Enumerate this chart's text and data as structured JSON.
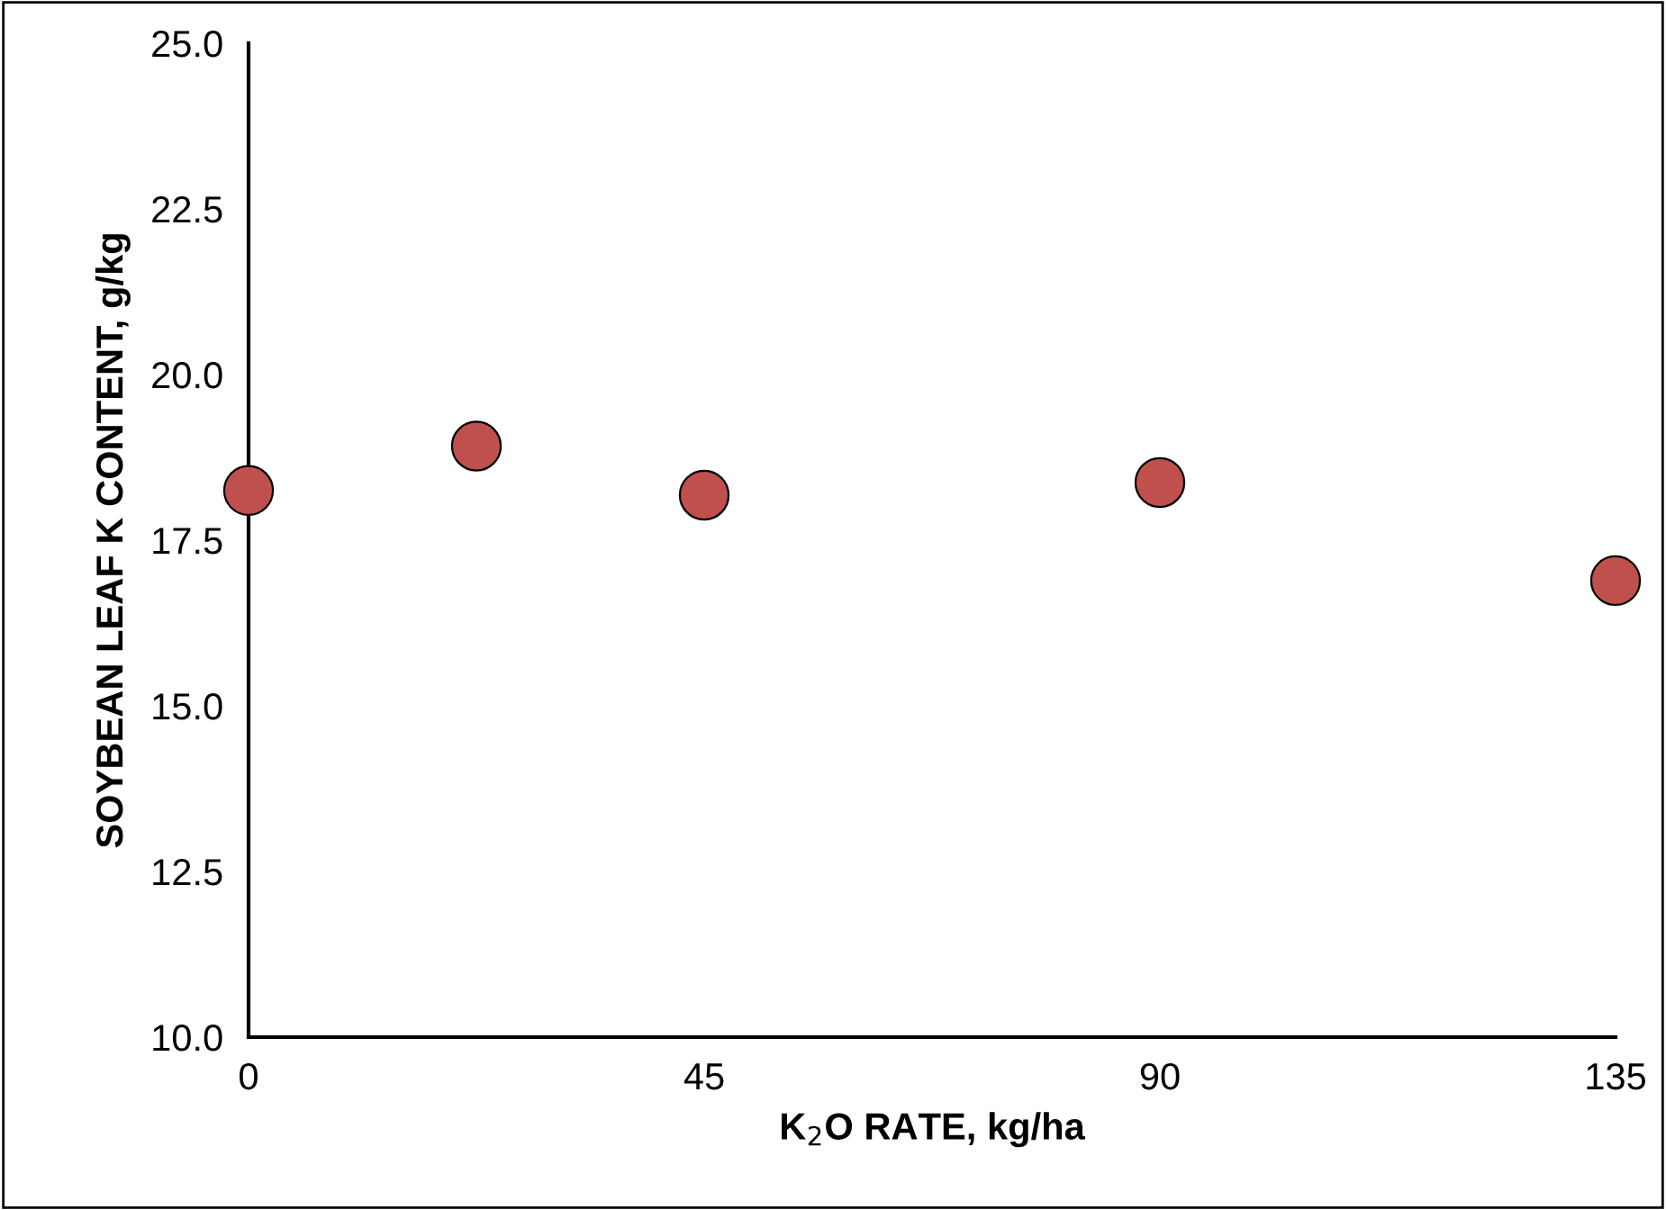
{
  "chart_data": {
    "type": "scatter",
    "xlabel": "K$_{2}$O RATE, kg/ha",
    "ylabel": "SOYBEAN LEAF K CONTENT, g/kg",
    "x": [
      0,
      22.5,
      45,
      90,
      135
    ],
    "series": [
      {
        "color": "#c0504d",
        "values": [
          18.25,
          18.92,
          18.18,
          18.37,
          16.89
        ]
      }
    ],
    "xlim": [
      0,
      135
    ],
    "xticks": [
      0,
      45,
      90,
      135
    ],
    "ylim": [
      10,
      25
    ],
    "yticks": [
      {
        "value": 10,
        "label": "10.0"
      },
      {
        "value": 12.5,
        "label": "12.5"
      },
      {
        "value": 15,
        "label": "15.0"
      },
      {
        "value": 17.5,
        "label": "17.5"
      },
      {
        "value": 20,
        "label": "20.0"
      },
      {
        "value": 22.5,
        "label": "22.5"
      },
      {
        "value": 25,
        "label": "25.0"
      }
    ],
    "grid": false,
    "marker": "circle"
  }
}
